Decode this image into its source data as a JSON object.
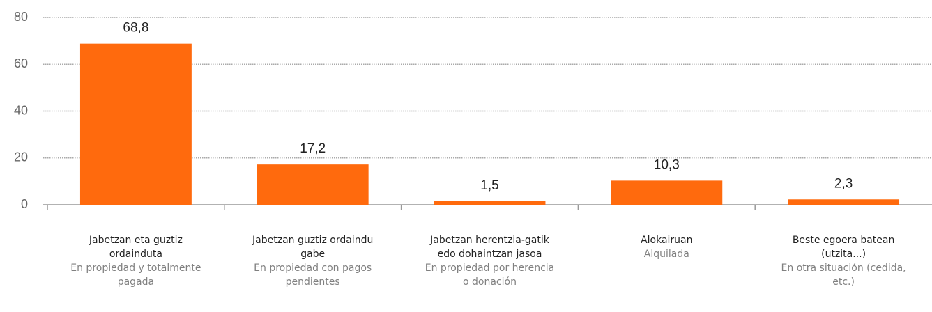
{
  "chart_data": {
    "type": "bar",
    "categories": [
      "Jabetzan eta guztiz ordainduta",
      "Jabetzan guztiz ordaindu gabe",
      "Jabetzan herentzia-gatik edo dohaintzan jasoa",
      "Alokairuan",
      "Beste egoera batean (utzita...)"
    ],
    "categories_es": [
      "En propiedad y totalmente pagada",
      "En propiedad con pagos pendientes",
      "En propiedad por herencia o donación",
      "Alquilada",
      "En otra situación (cedida, etc.)"
    ],
    "values": [
      68.8,
      17.2,
      1.5,
      10.3,
      2.3
    ],
    "value_labels": [
      "68,8",
      "17,2",
      "1,5",
      "10,3",
      "2,3"
    ],
    "color": "#ff6a0d",
    "ylim": [
      0,
      80
    ],
    "yticks": [
      0,
      20,
      40,
      60,
      80
    ],
    "grid": true
  }
}
